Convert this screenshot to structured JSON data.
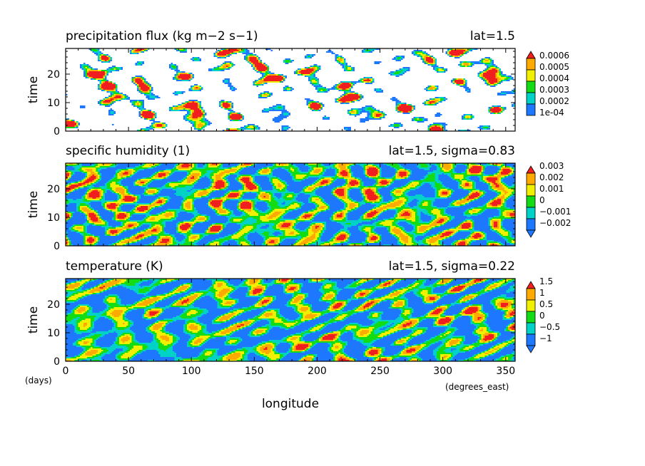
{
  "figure": {
    "x_axis_label": "longitude",
    "x_unit": "(degrees_east)",
    "y_unit": "(days)",
    "colors": {
      "blue": "#1e78ff",
      "cyan": "#00d2c8",
      "green": "#14dc14",
      "yellow": "#f0f000",
      "orange": "#ffaa00",
      "red": "#f01e1e"
    }
  },
  "chart_data": [
    {
      "type": "heatmap",
      "title": "precipitation flux (kg m−2 s−1)",
      "subtitle": "lat=1.5",
      "xlabel": "longitude",
      "ylabel": "time",
      "xlim": [
        0,
        357.5
      ],
      "ylim": [
        0,
        29
      ],
      "xticks": [
        0,
        50,
        100,
        150,
        200,
        250,
        300,
        350
      ],
      "yticks": [
        0,
        10,
        20
      ],
      "colorbar": {
        "labels": [
          "1e-04",
          "0.0002",
          "0.0003",
          "0.0004",
          "0.0005",
          "0.0006"
        ],
        "levels": [
          0.0001,
          0.0002,
          0.0003,
          0.0004,
          0.0005,
          0.0006
        ],
        "colors": [
          "#ffffff",
          "#1e78ff",
          "#00d2c8",
          "#14dc14",
          "#f0f000",
          "#ffaa00",
          "#f01e1e"
        ],
        "lower_extend": false
      }
    },
    {
      "type": "heatmap",
      "title": "specific humidity (1)",
      "subtitle": "lat=1.5, sigma=0.83",
      "xlabel": "longitude",
      "ylabel": "time",
      "xlim": [
        0,
        357.5
      ],
      "ylim": [
        0,
        29
      ],
      "xticks": [
        0,
        50,
        100,
        150,
        200,
        250,
        300,
        350
      ],
      "yticks": [
        0,
        10,
        20
      ],
      "colorbar": {
        "labels": [
          "−0.002",
          "−0.001",
          "0",
          "0.001",
          "0.002",
          "0.003"
        ],
        "levels": [
          -0.002,
          -0.001,
          0,
          0.001,
          0.002,
          0.003
        ],
        "colors": [
          "#1e78ff",
          "#1e78ff",
          "#00d2c8",
          "#14dc14",
          "#f0f000",
          "#ffaa00",
          "#f01e1e"
        ],
        "lower_extend": true
      }
    },
    {
      "type": "heatmap",
      "title": "temperature (K)",
      "subtitle": "lat=1.5, sigma=0.22",
      "xlabel": "longitude",
      "ylabel": "time",
      "xlim": [
        0,
        357.5
      ],
      "ylim": [
        0,
        29
      ],
      "xticks": [
        0,
        50,
        100,
        150,
        200,
        250,
        300,
        350
      ],
      "yticks": [
        0,
        10,
        20
      ],
      "colorbar": {
        "labels": [
          "−1",
          "−0.5",
          "0",
          "0.5",
          "1",
          "1.5"
        ],
        "levels": [
          -1,
          -0.5,
          0,
          0.5,
          1,
          1.5
        ],
        "colors": [
          "#1e78ff",
          "#1e78ff",
          "#00d2c8",
          "#14dc14",
          "#f0f000",
          "#ffaa00",
          "#f01e1e"
        ],
        "lower_extend": true
      }
    }
  ]
}
